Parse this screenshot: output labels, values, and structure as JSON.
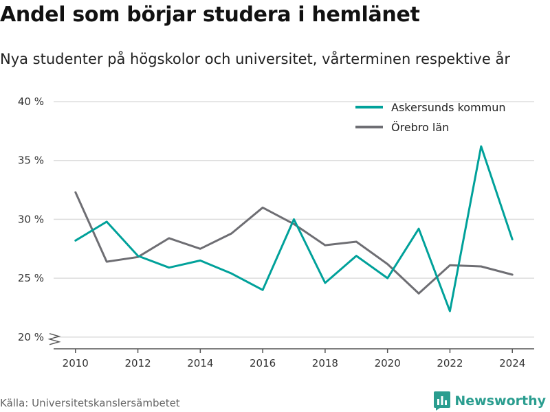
{
  "header": {
    "title": "Andel som börjar studera i hemlänet",
    "subtitle": "Nya studenter på högskolor och universitet, vårterminen respektive år"
  },
  "footer": {
    "source": "Källa: Universitetskanslersämbetet",
    "brand": "Newsworthy"
  },
  "colors": {
    "askersund": "#00a19a",
    "orebro": "#6e6e73",
    "grid": "#dddddd",
    "axis": "#555555",
    "brand": "#2a9d8f"
  },
  "icons": {
    "brand_logo": "bar-chart-badge-icon",
    "axis_break": "zigzag-break-icon"
  },
  "chart_data": {
    "type": "line",
    "x": [
      2010,
      2011,
      2012,
      2013,
      2014,
      2015,
      2016,
      2017,
      2018,
      2019,
      2020,
      2021,
      2022,
      2023,
      2024
    ],
    "series": [
      {
        "name": "Askersunds kommun",
        "color": "#00a19a",
        "values": [
          28.2,
          29.8,
          26.9,
          25.9,
          26.5,
          25.4,
          24.0,
          30.0,
          24.6,
          26.9,
          25.0,
          29.2,
          22.2,
          36.2,
          28.3
        ]
      },
      {
        "name": "Örebro län",
        "color": "#6e6e73",
        "values": [
          32.3,
          26.4,
          26.8,
          28.4,
          27.5,
          28.8,
          31.0,
          29.6,
          27.8,
          28.1,
          26.2,
          23.7,
          26.1,
          26.0,
          25.3
        ]
      }
    ],
    "xticks": [
      {
        "value": 2010,
        "label": "2010"
      },
      {
        "value": 2012,
        "label": "2012"
      },
      {
        "value": 2014,
        "label": "2014"
      },
      {
        "value": 2016,
        "label": "2016"
      },
      {
        "value": 2018,
        "label": "2018"
      },
      {
        "value": 2020,
        "label": "2020"
      },
      {
        "value": 2022,
        "label": "2022"
      },
      {
        "value": 2024,
        "label": "2024"
      }
    ],
    "yticks": [
      {
        "value": 20,
        "label": "20 %"
      },
      {
        "value": 25,
        "label": "25 %"
      },
      {
        "value": 30,
        "label": "30 %"
      },
      {
        "value": 35,
        "label": "35 %"
      },
      {
        "value": 40,
        "label": "40 %"
      }
    ],
    "xlim": [
      2009.3,
      2024.7
    ],
    "ylim": [
      19.0,
      40.0
    ],
    "grid": true,
    "y_axis_break": true,
    "legend_position": "top-right",
    "xlabel": "",
    "ylabel": ""
  }
}
